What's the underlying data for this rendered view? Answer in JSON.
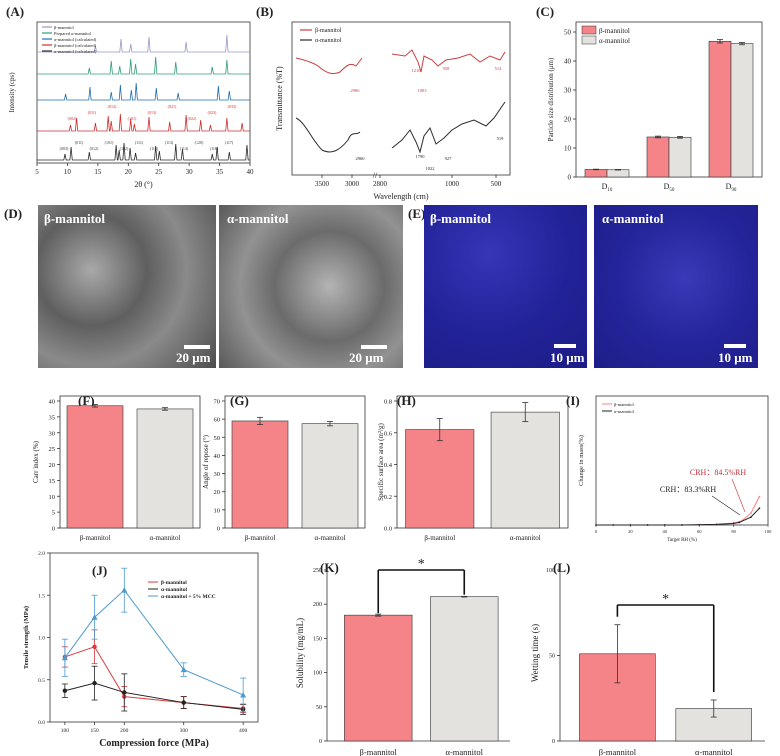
{
  "panel_letters": {
    "A": "(A)",
    "B": "(B)",
    "C": "(C)",
    "D": "(D)",
    "E": "(E)",
    "F": "(F)",
    "G": "(G)",
    "H": "(H)",
    "I": "(I)",
    "J": "(J)",
    "K": "(K)",
    "L": "(L)"
  },
  "colors": {
    "beta": "#f48487",
    "alpha": "#e4e2de",
    "xrd_beta_calc": "#9a97c6",
    "xrd_prepared_alpha": "#2e9e7c",
    "xrd_alpha_calc": "#1f6fb2",
    "xrd_beta": "#cf2e2e",
    "xrd_alpha": "#2b2b2b",
    "ftir_beta": "#c84040",
    "ftir_alpha": "#2b2b2b",
    "mcc": "#4a9ad1",
    "sem_bg": "#7d7d7d",
    "plm_bg": "#26269a"
  },
  "sem_images": {
    "beta_label": "β-mannitol",
    "alpha_label": "α-mannitol",
    "beta_scale": "20 μm",
    "alpha_scale": "20 μm"
  },
  "plm_images": {
    "beta_label": "β-mannitol",
    "alpha_label": "α-mannitol",
    "beta_scale": "10 μm",
    "alpha_scale": "10 μm"
  },
  "chart_data": [
    {
      "panel": "A",
      "type": "line",
      "xlabel": "2θ (°)",
      "ylabel": "Intensity (cps)",
      "xlim": [
        5,
        40
      ],
      "xticks": [
        5,
        10,
        15,
        20,
        25,
        30,
        35,
        40
      ],
      "legend": [
        "β-mannitol",
        "Prepared α-mannitol",
        "α-mannitol (calculated)",
        "β-mannitol (calculated)",
        "α-mannitol (calculated)"
      ],
      "legend_position": "top-left",
      "series": [
        {
          "name": "β-mannitol",
          "peaks": [
            14.6,
            18.8,
            20.4,
            23.4,
            29.5,
            36.2
          ]
        },
        {
          "name": "Prepared α-mannitol",
          "peaks": [
            13.6,
            17.2,
            18.6,
            20.4,
            21.2,
            24.5,
            27.8,
            33.8,
            36.2
          ]
        },
        {
          "name": "α-mannitol (calculated)",
          "peaks": [
            9.7,
            13.7,
            17.2,
            18.7,
            20.5,
            21.3,
            24.6,
            28.2,
            34.8,
            36.6
          ]
        },
        {
          "name": "β-mannitol (calculated)",
          "peaks": [
            10.5,
            11.5,
            14.6,
            16.7,
            17.2,
            18.7,
            20.4,
            21.0,
            23.4,
            26.8,
            29.5,
            31.9,
            33.5,
            36.2,
            38.7
          ]
        },
        {
          "name": "α-mannitol (calculated)",
          "peaks": [
            9.6,
            10.6,
            13.6,
            18.0,
            18.5,
            19.3,
            20.3,
            21.2,
            24.5,
            25.1,
            27.8,
            28.9,
            33.8,
            34.6,
            36.6,
            39.5
          ]
        }
      ],
      "annotations_beta": [
        "(002)",
        "(011)",
        "(012)",
        "(101)",
        "(013)",
        "(021)",
        "(022)",
        "(023)",
        "(033)"
      ],
      "annotations_alpha": [
        "(003)",
        "(011)",
        "(012)",
        "(101)",
        "(102)",
        "(111)",
        "(112)",
        "(113)",
        "(114)",
        "(120)",
        "(116)",
        "(117)"
      ]
    },
    {
      "panel": "B",
      "type": "line",
      "xlabel": "Wavelength (cm)",
      "ylabel": "Transmittance (%T)",
      "xticks": [
        3500,
        3000,
        2800,
        1000,
        500
      ],
      "legend": [
        "β-mannitol",
        "α-mannitol"
      ],
      "legend_position": "top-left",
      "annotations_beta": [
        "2986",
        "1210",
        "1083",
        "958",
        "514"
      ],
      "annotations_alpha": [
        "2960",
        "1790",
        "1022",
        "927",
        "519"
      ]
    },
    {
      "panel": "C",
      "type": "bar",
      "ylabel": "Particle size distribution (μm)",
      "categories": [
        "D10",
        "D50",
        "D90"
      ],
      "category_labels": [
        {
          "main": "D",
          "sub": "10"
        },
        {
          "main": "D",
          "sub": "50"
        },
        {
          "main": "D",
          "sub": "90"
        }
      ],
      "ylim": [
        0,
        50
      ],
      "yticks": [
        0,
        10,
        20,
        30,
        40,
        50
      ],
      "legend_position": "top-left",
      "series": [
        {
          "name": "β-mannitol",
          "values": [
            2.6,
            13.8,
            46.8
          ],
          "errors": [
            0.1,
            0.3,
            0.6
          ]
        },
        {
          "name": "α-mannitol",
          "values": [
            2.5,
            13.7,
            46.0
          ],
          "errors": [
            0.1,
            0.3,
            0.4
          ]
        }
      ]
    },
    {
      "panel": "F",
      "type": "bar",
      "ylabel": "Carr index (%)",
      "categories": [
        "β-mannitol",
        "α-mannitol"
      ],
      "values": [
        38.5,
        37.5
      ],
      "errors": [
        0.4,
        0.4
      ],
      "ylim": [
        0,
        40
      ],
      "yticks": [
        0,
        5,
        10,
        15,
        20,
        25,
        30,
        35,
        40
      ]
    },
    {
      "panel": "G",
      "type": "bar",
      "ylabel": "Angle of repose (°)",
      "categories": [
        "β-mannitol",
        "α-mannitol"
      ],
      "values": [
        59,
        57.5
      ],
      "errors": [
        2.0,
        1.2
      ],
      "ylim": [
        0,
        70
      ],
      "yticks": [
        0,
        10,
        20,
        30,
        40,
        50,
        60,
        70
      ]
    },
    {
      "panel": "H",
      "type": "bar",
      "ylabel": "Specific surface area (m²/g)",
      "categories": [
        "β-mannitol",
        "α-mannitol"
      ],
      "values": [
        0.62,
        0.73
      ],
      "errors": [
        0.07,
        0.06
      ],
      "ylim": [
        0.0,
        0.8
      ],
      "yticks": [
        0.0,
        0.2,
        0.4,
        0.6,
        0.8
      ]
    },
    {
      "panel": "I",
      "type": "line",
      "xlabel": "Target RH (%)",
      "ylabel": "Change in mass(%)",
      "xlim": [
        0,
        100
      ],
      "ylim": [
        0,
        10
      ],
      "xticks": [
        0,
        20,
        40,
        60,
        80,
        100
      ],
      "legend_position": "top-left",
      "series": [
        {
          "name": "β-mannitol",
          "x": [
            0,
            10,
            20,
            30,
            40,
            50,
            60,
            70,
            80,
            84.5,
            90,
            95
          ],
          "y": [
            0,
            0,
            0,
            0,
            0,
            0,
            0.02,
            0.05,
            0.15,
            0.3,
            0.9,
            2.2
          ]
        },
        {
          "name": "α-mannitol",
          "x": [
            0,
            10,
            20,
            30,
            40,
            50,
            60,
            70,
            80,
            83.3,
            90,
            95
          ],
          "y": [
            0,
            0,
            0,
            0,
            0,
            0,
            0.02,
            0.05,
            0.12,
            0.2,
            0.6,
            1.3
          ]
        }
      ],
      "annotations": [
        "CRH：84.5%RH",
        "CRH：83.3%RH"
      ]
    },
    {
      "panel": "J",
      "type": "line",
      "xlabel": "Compression force (MPa)",
      "ylabel": "Tensile strength (MPa)",
      "x": [
        100,
        150,
        200,
        300,
        400
      ],
      "xlim": [
        75,
        425
      ],
      "ylim": [
        0.0,
        2.0
      ],
      "yticks": [
        0.0,
        0.5,
        1.0,
        1.5,
        2.0
      ],
      "legend_position": "top-right",
      "series": [
        {
          "name": "β-mannitol",
          "values": [
            0.77,
            0.89,
            0.3,
            0.23,
            0.16
          ],
          "errors": [
            0.12,
            0.2,
            0.12,
            0.07,
            0.05
          ]
        },
        {
          "name": "α-mannitol",
          "values": [
            0.37,
            0.46,
            0.35,
            0.23,
            0.15
          ],
          "errors": [
            0.08,
            0.2,
            0.22,
            0.07,
            0.06
          ]
        },
        {
          "name": "α-mannitol + 5% MCC",
          "values": [
            0.76,
            1.24,
            1.56,
            0.62,
            0.32
          ],
          "errors": [
            0.22,
            0.26,
            0.26,
            0.08,
            0.2
          ]
        }
      ]
    },
    {
      "panel": "K",
      "type": "bar",
      "ylabel": "Solubility (mg/mL)",
      "categories": [
        "β-mannitol",
        "α-mannitol"
      ],
      "values": [
        184,
        211
      ],
      "errors": [
        1.5,
        0.5
      ],
      "ylim": [
        0,
        250
      ],
      "yticks": [
        0,
        50,
        100,
        150,
        200,
        250
      ],
      "significance": "*"
    },
    {
      "panel": "L",
      "type": "bar",
      "ylabel": "Wetting time (s)",
      "categories": [
        "β-mannitol",
        "α-mannitol"
      ],
      "values": [
        51,
        19
      ],
      "errors": [
        17,
        5
      ],
      "ylim": [
        0,
        100
      ],
      "yticks": [
        0,
        50,
        100
      ],
      "significance": "*"
    }
  ]
}
